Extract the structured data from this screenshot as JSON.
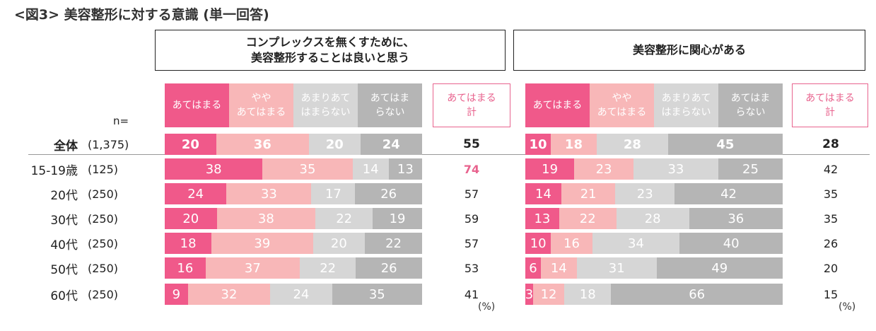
{
  "title": "<図3> 美容整形に対する意識 (単一回答)",
  "n_label": "n=",
  "unit": "(%)",
  "colors": {
    "strong_agree": "#f0598a",
    "agree": "#f8b7b8",
    "disagree": "#d6d6d6",
    "strong_disagree": "#b5b5b5",
    "accent": "#e8638e"
  },
  "legend": [
    {
      "label": "あてはまる"
    },
    {
      "label": "やや\nあてはまる"
    },
    {
      "label": "あまりあて\nはまらない"
    },
    {
      "label": "あてはま\nらない"
    }
  ],
  "total_label": "あてはまる\n計",
  "chart_data": {
    "type": "stacked-bar",
    "unit": "%",
    "categories": [
      "全体",
      "15-19歳",
      "20代",
      "30代",
      "40代",
      "50代",
      "60代"
    ],
    "n": [
      "(1,375)",
      "(125)",
      "(250)",
      "(250)",
      "(250)",
      "(250)",
      "(250)"
    ],
    "series_names": [
      "あてはまる",
      "ややあてはまる",
      "あまりあてはまらない",
      "あてはまらない"
    ],
    "panels": [
      {
        "title": "コンプレックスを無くすために、\n美容整形することは良いと思う",
        "values": [
          [
            20,
            36,
            20,
            24
          ],
          [
            38,
            35,
            14,
            13
          ],
          [
            24,
            33,
            17,
            26
          ],
          [
            20,
            38,
            22,
            19
          ],
          [
            18,
            39,
            20,
            22
          ],
          [
            16,
            37,
            22,
            26
          ],
          [
            9,
            32,
            24,
            35
          ]
        ],
        "totals": [
          55,
          74,
          57,
          59,
          57,
          53,
          41
        ],
        "highlight_total_index": 1
      },
      {
        "title": "美容整形に関心がある",
        "values": [
          [
            10,
            18,
            28,
            45
          ],
          [
            19,
            23,
            33,
            25
          ],
          [
            14,
            21,
            23,
            42
          ],
          [
            13,
            22,
            28,
            36
          ],
          [
            10,
            16,
            34,
            40
          ],
          [
            6,
            14,
            31,
            49
          ],
          [
            3,
            12,
            18,
            66
          ]
        ],
        "totals": [
          28,
          42,
          35,
          35,
          26,
          20,
          15
        ],
        "highlight_total_index": null
      }
    ]
  }
}
